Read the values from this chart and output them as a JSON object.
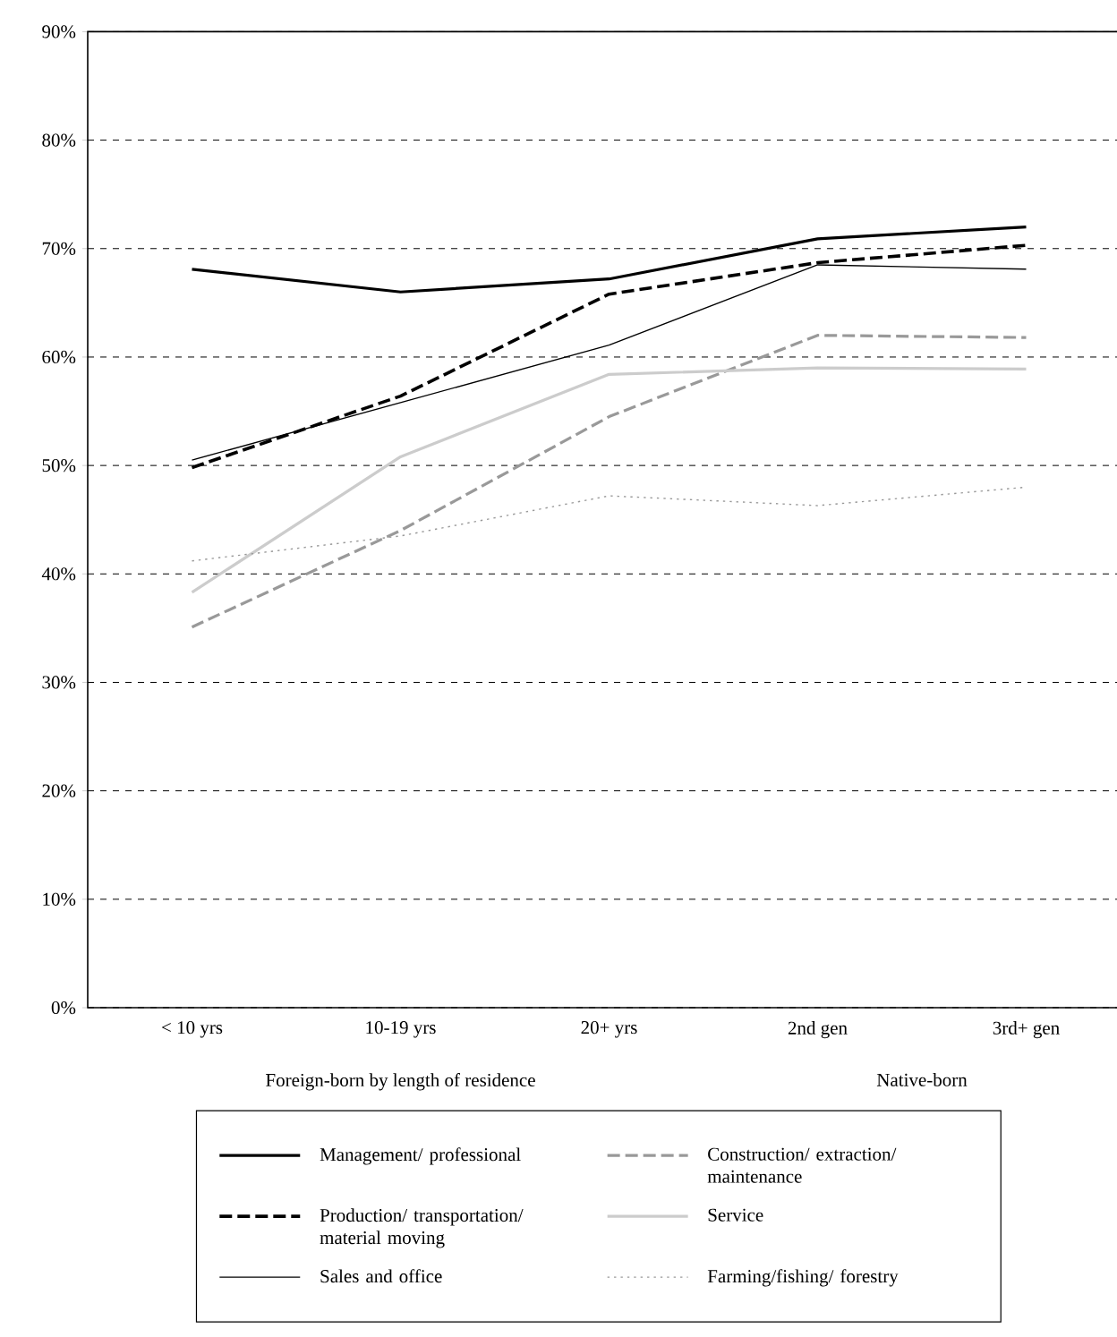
{
  "chart_data": {
    "type": "line",
    "categories": [
      "< 10 yrs",
      "10-19 yrs",
      "20+ yrs",
      "2nd gen",
      "3rd+ gen"
    ],
    "ylim": [
      0,
      90
    ],
    "yticks": [
      {
        "value": 0,
        "label": "0%"
      },
      {
        "value": 10,
        "label": "10%"
      },
      {
        "value": 20,
        "label": "20%"
      },
      {
        "value": 30,
        "label": "30%"
      },
      {
        "value": 40,
        "label": "40%"
      },
      {
        "value": 50,
        "label": "50%"
      },
      {
        "value": 60,
        "label": "60%"
      },
      {
        "value": 70,
        "label": "70%"
      },
      {
        "value": 80,
        "label": "80%"
      },
      {
        "value": 90,
        "label": "90%"
      }
    ],
    "grid": "y",
    "legend": "bottom",
    "annotations": [
      "Foreign-born by length of residence",
      "Native-born"
    ],
    "series": [
      {
        "name": "Management/ professional",
        "color": "#000000",
        "line_style": "solid",
        "values": [
          68.1,
          66.0,
          67.2,
          70.9,
          72.0
        ]
      },
      {
        "name": "Production/ transportation/ material moving",
        "color": "#000000",
        "line_style": "dashed",
        "values": [
          49.8,
          56.4,
          65.8,
          68.7,
          70.3
        ]
      },
      {
        "name": "Sales and office",
        "color": "#000000",
        "line_style": "solid",
        "values": [
          50.5,
          55.8,
          61.1,
          68.5,
          68.1
        ]
      },
      {
        "name": "Construction/ extraction/ maintenance",
        "color": "#999999",
        "line_style": "dashed",
        "values": [
          35.1,
          44.0,
          54.5,
          62.0,
          61.8
        ]
      },
      {
        "name": "Service",
        "color": "#cccccc",
        "line_style": "solid",
        "values": [
          38.3,
          50.8,
          58.4,
          59.0,
          58.9
        ]
      },
      {
        "name": "Farming/fishing/ forestry",
        "color": "#999999",
        "line_style": "dotted",
        "values": [
          41.2,
          43.5,
          47.2,
          46.3,
          48.0
        ]
      }
    ]
  }
}
